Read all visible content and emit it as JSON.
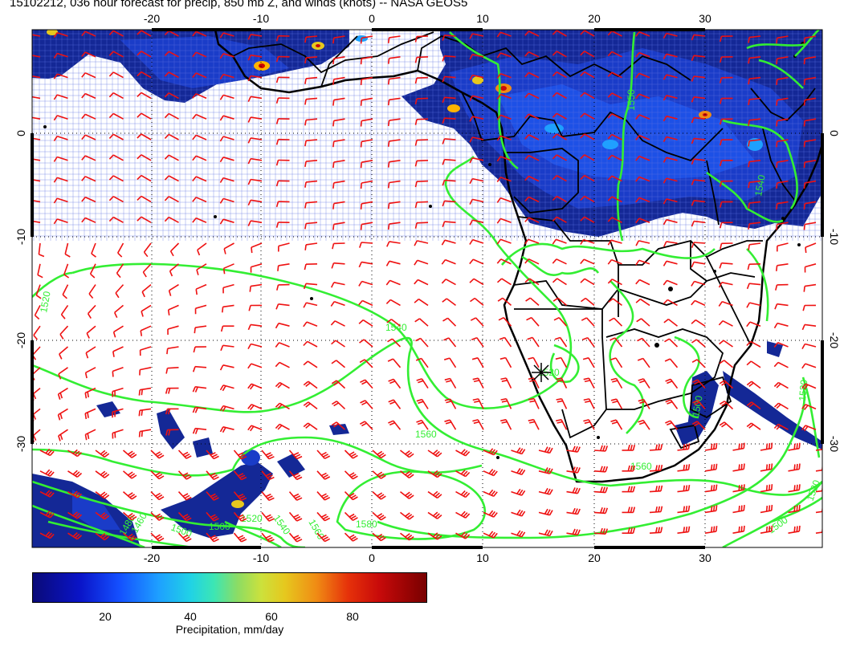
{
  "title": "15102212, 036 hour forecast for precip, 850 mb Z, and winds (knots) -- NASA GEOS5",
  "map": {
    "lon_range": [
      -30,
      40
    ],
    "lat_range": [
      -40,
      10
    ],
    "lon_ticks": [
      "-20",
      "-10",
      "0",
      "10",
      "20",
      "30"
    ],
    "lat_ticks": [
      "0",
      "-10",
      "-20",
      "-30"
    ],
    "projection": "lon-lat",
    "gridlines": "dotted",
    "coastline_color": "#000000",
    "contour_color": "#33ee33",
    "barb_color": "#ee1111",
    "marker": "asterisk"
  },
  "contour_labels": [
    "1520",
    "1540",
    "1560",
    "1580",
    "1520",
    "1560",
    "1550",
    "1540",
    "1520",
    "1500",
    "1520",
    "1560",
    "1540",
    "1520",
    "1500",
    "1500",
    "1480",
    "1460",
    "1500"
  ],
  "colorbar": {
    "label": "Precipitation, mm/day",
    "ticks": [
      "20",
      "40",
      "60",
      "80"
    ],
    "tick_values": [
      20,
      40,
      60,
      80
    ],
    "range": [
      0,
      100
    ]
  }
}
